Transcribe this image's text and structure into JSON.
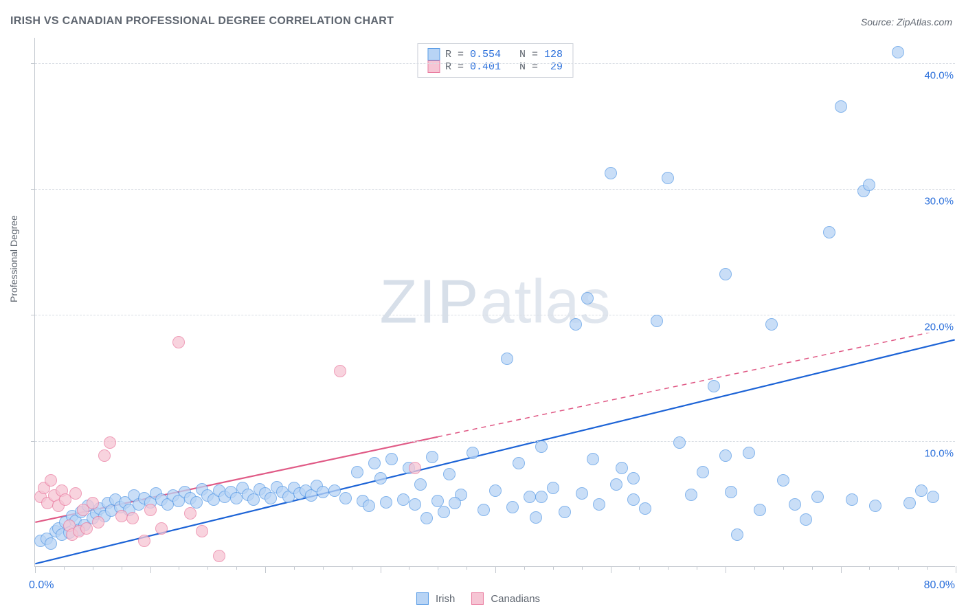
{
  "title": "IRISH VS CANADIAN PROFESSIONAL DEGREE CORRELATION CHART",
  "source": "Source: ZipAtlas.com",
  "ylabel": "Professional Degree",
  "watermark": {
    "zip": "ZIP",
    "atlas": "atlas"
  },
  "chart": {
    "type": "scatter",
    "background_color": "#ffffff",
    "grid_color": "#d8dde3",
    "axis_color": "#c2c7ce",
    "xlim": [
      0,
      80
    ],
    "ylim": [
      0,
      42
    ],
    "x_major_step": 10,
    "x_minor_step": 2.5,
    "y_ticks": [
      10,
      20,
      30,
      40
    ],
    "y_tick_labels": [
      "10.0%",
      "20.0%",
      "30.0%",
      "40.0%"
    ],
    "x_tick_min_label": "0.0%",
    "x_tick_max_label": "80.0%",
    "label_color": "#2a6fdb",
    "label_fontsize": 15,
    "marker_radius": 9,
    "marker_border_width": 1.2,
    "trend_line_width": 2.2
  },
  "series": [
    {
      "name": "Irish",
      "fill_color": "#b8d4f5",
      "border_color": "#5a9ce6",
      "line_color": "#1c63d6",
      "R": "0.554",
      "N": "128",
      "trend": {
        "x0": 0,
        "y0": 0.2,
        "x1": 80,
        "y1": 18.0,
        "dash": false,
        "extrapolate_from_x": null
      },
      "points": [
        [
          0.5,
          2.0
        ],
        [
          1.0,
          2.2
        ],
        [
          1.4,
          1.8
        ],
        [
          1.8,
          2.8
        ],
        [
          2.0,
          3.0
        ],
        [
          2.3,
          2.5
        ],
        [
          2.6,
          3.5
        ],
        [
          3.0,
          2.7
        ],
        [
          3.2,
          4.0
        ],
        [
          3.5,
          3.6
        ],
        [
          3.8,
          2.9
        ],
        [
          4.0,
          4.3
        ],
        [
          4.3,
          3.3
        ],
        [
          4.6,
          4.8
        ],
        [
          5.0,
          3.8
        ],
        [
          5.3,
          4.2
        ],
        [
          5.6,
          4.6
        ],
        [
          6.0,
          4.0
        ],
        [
          6.3,
          5.0
        ],
        [
          6.6,
          4.4
        ],
        [
          7.0,
          5.3
        ],
        [
          7.4,
          4.7
        ],
        [
          7.8,
          5.1
        ],
        [
          8.2,
          4.5
        ],
        [
          8.6,
          5.6
        ],
        [
          9.0,
          4.9
        ],
        [
          9.5,
          5.4
        ],
        [
          10.0,
          5.1
        ],
        [
          10.5,
          5.8
        ],
        [
          11.0,
          5.3
        ],
        [
          11.5,
          4.9
        ],
        [
          12.0,
          5.6
        ],
        [
          12.5,
          5.2
        ],
        [
          13.0,
          5.9
        ],
        [
          13.5,
          5.4
        ],
        [
          14.0,
          5.1
        ],
        [
          14.5,
          6.1
        ],
        [
          15.0,
          5.6
        ],
        [
          15.5,
          5.3
        ],
        [
          16.0,
          6.0
        ],
        [
          16.5,
          5.5
        ],
        [
          17.0,
          5.9
        ],
        [
          17.5,
          5.4
        ],
        [
          18.0,
          6.2
        ],
        [
          18.5,
          5.7
        ],
        [
          19.0,
          5.3
        ],
        [
          19.5,
          6.1
        ],
        [
          20.0,
          5.8
        ],
        [
          20.5,
          5.4
        ],
        [
          21.0,
          6.3
        ],
        [
          21.5,
          5.9
        ],
        [
          22.0,
          5.5
        ],
        [
          22.5,
          6.2
        ],
        [
          23.0,
          5.8
        ],
        [
          23.5,
          6.0
        ],
        [
          24.0,
          5.6
        ],
        [
          24.5,
          6.4
        ],
        [
          25.0,
          5.9
        ],
        [
          26.0,
          6.0
        ],
        [
          27.0,
          5.4
        ],
        [
          28.0,
          7.5
        ],
        [
          28.5,
          5.2
        ],
        [
          29.0,
          4.8
        ],
        [
          29.5,
          8.2
        ],
        [
          30.0,
          7.0
        ],
        [
          30.5,
          5.1
        ],
        [
          31.0,
          8.5
        ],
        [
          32.0,
          5.3
        ],
        [
          32.5,
          7.8
        ],
        [
          33.0,
          4.9
        ],
        [
          33.5,
          6.5
        ],
        [
          34.0,
          3.8
        ],
        [
          34.5,
          8.7
        ],
        [
          35.0,
          5.2
        ],
        [
          35.5,
          4.3
        ],
        [
          36.0,
          7.3
        ],
        [
          37.0,
          5.7
        ],
        [
          38.0,
          9.0
        ],
        [
          39.0,
          4.5
        ],
        [
          40.0,
          6.0
        ],
        [
          41.0,
          16.5
        ],
        [
          41.5,
          4.7
        ],
        [
          42.0,
          8.2
        ],
        [
          43.0,
          5.5
        ],
        [
          43.5,
          3.9
        ],
        [
          44.0,
          9.5
        ],
        [
          45.0,
          6.2
        ],
        [
          46.0,
          4.3
        ],
        [
          47.0,
          19.2
        ],
        [
          47.5,
          5.8
        ],
        [
          48.0,
          21.3
        ],
        [
          48.5,
          8.5
        ],
        [
          49.0,
          4.9
        ],
        [
          50.0,
          31.2
        ],
        [
          50.5,
          6.5
        ],
        [
          51.0,
          7.8
        ],
        [
          52.0,
          5.3
        ],
        [
          53.0,
          4.6
        ],
        [
          54.0,
          19.5
        ],
        [
          55.0,
          30.8
        ],
        [
          56.0,
          9.8
        ],
        [
          57.0,
          5.7
        ],
        [
          58.0,
          7.5
        ],
        [
          59.0,
          14.3
        ],
        [
          60.0,
          23.2
        ],
        [
          60.5,
          5.9
        ],
        [
          61.0,
          2.5
        ],
        [
          62.0,
          9.0
        ],
        [
          63.0,
          4.5
        ],
        [
          64.0,
          19.2
        ],
        [
          65.0,
          6.8
        ],
        [
          66.0,
          4.9
        ],
        [
          67.0,
          3.7
        ],
        [
          68.0,
          5.5
        ],
        [
          69.0,
          26.5
        ],
        [
          70.0,
          36.5
        ],
        [
          71.0,
          5.3
        ],
        [
          72.0,
          29.8
        ],
        [
          72.5,
          30.3
        ],
        [
          73.0,
          4.8
        ],
        [
          75.0,
          40.8
        ],
        [
          76.0,
          5.0
        ],
        [
          77.0,
          6.0
        ],
        [
          78.0,
          5.5
        ],
        [
          60.0,
          8.8
        ],
        [
          52.0,
          7.0
        ],
        [
          44.0,
          5.5
        ],
        [
          36.5,
          5.0
        ]
      ]
    },
    {
      "name": "Canadians",
      "fill_color": "#f6c5d4",
      "border_color": "#ea7da1",
      "line_color": "#e05a86",
      "R": "0.401",
      "N": "29",
      "trend": {
        "x0": 0,
        "y0": 3.5,
        "x1": 80,
        "y1": 19.0,
        "dash": true,
        "extrapolate_from_x": 35
      },
      "points": [
        [
          0.5,
          5.5
        ],
        [
          0.8,
          6.2
        ],
        [
          1.1,
          5.0
        ],
        [
          1.4,
          6.8
        ],
        [
          1.7,
          5.6
        ],
        [
          2.0,
          4.8
        ],
        [
          2.3,
          6.0
        ],
        [
          2.6,
          5.3
        ],
        [
          3.0,
          3.2
        ],
        [
          3.2,
          2.5
        ],
        [
          3.5,
          5.8
        ],
        [
          3.8,
          2.8
        ],
        [
          4.2,
          4.5
        ],
        [
          4.5,
          3.0
        ],
        [
          5.0,
          5.0
        ],
        [
          5.5,
          3.5
        ],
        [
          6.0,
          8.8
        ],
        [
          6.5,
          9.8
        ],
        [
          7.5,
          4.0
        ],
        [
          8.5,
          3.8
        ],
        [
          9.5,
          2.0
        ],
        [
          10.0,
          4.5
        ],
        [
          11.0,
          3.0
        ],
        [
          12.5,
          17.8
        ],
        [
          13.5,
          4.2
        ],
        [
          14.5,
          2.8
        ],
        [
          16.0,
          0.8
        ],
        [
          26.5,
          15.5
        ],
        [
          33.0,
          7.8
        ]
      ]
    }
  ],
  "legend_bottom": [
    {
      "label": "Irish",
      "swatch_fill": "#b8d4f5",
      "swatch_border": "#5a9ce6"
    },
    {
      "label": "Canadians",
      "swatch_fill": "#f6c5d4",
      "swatch_border": "#ea7da1"
    }
  ],
  "legend_top_text": {
    "r_label": "R =",
    "n_label": "N ="
  }
}
